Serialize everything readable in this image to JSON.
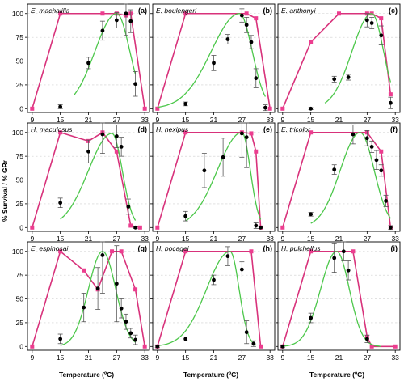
{
  "chart_data": {
    "type": "line",
    "ylabel": "% Survival / % GRr",
    "xlabel": "Temperature (ºC)",
    "x_ticks": [
      9,
      15,
      21,
      27,
      33
    ],
    "y_ticks": [
      0,
      25,
      50,
      75,
      100
    ],
    "xlim": [
      8,
      34
    ],
    "ylim": [
      -4,
      110
    ],
    "grid": "horizontal dashed",
    "colors": {
      "survival": "#e8408f",
      "fit": "#4cc74a",
      "growth": "#000000"
    },
    "panels": [
      {
        "letter": "(a)",
        "species": "E. machalilla",
        "survival": {
          "x": [
            9,
            15,
            24,
            27,
            29,
            30,
            33
          ],
          "y": [
            0,
            100,
            100,
            100,
            98,
            100,
            0
          ]
        },
        "growth": {
          "x": [
            15,
            21,
            24,
            27,
            29,
            30,
            31
          ],
          "y": [
            2,
            48,
            82,
            93,
            100,
            92,
            26
          ],
          "err": [
            2,
            6,
            10,
            8,
            23,
            12,
            13
          ]
        },
        "fit": {
          "center": 27.0,
          "height": 100,
          "left_width": 4.6,
          "right_width": 2.8,
          "range": [
            18,
            31
          ]
        }
      },
      {
        "letter": "(b)",
        "species": "E. boulengeri",
        "survival": {
          "x": [
            9,
            15,
            28,
            30,
            33
          ],
          "y": [
            0,
            100,
            100,
            95,
            0
          ]
        },
        "growth": {
          "x": [
            15,
            21,
            24,
            27,
            28,
            29,
            30,
            32
          ],
          "y": [
            5,
            48,
            73,
            98,
            88,
            70,
            32,
            1
          ],
          "err": [
            2,
            8,
            5,
            7,
            8,
            7,
            10,
            3
          ]
        },
        "fit": {
          "center": 26.5,
          "height": 100,
          "left_width": 6.0,
          "right_width": 2.7,
          "range": [
            9,
            32
          ]
        }
      },
      {
        "letter": "(c)",
        "species": "E. anthonyi",
        "survival": {
          "x": [
            9,
            15,
            21,
            27,
            28,
            30,
            32
          ],
          "y": [
            0,
            70,
            100,
            100,
            100,
            95,
            15
          ]
        },
        "growth": {
          "x": [
            15,
            20,
            23,
            27,
            28,
            30,
            32
          ],
          "y": [
            0,
            31,
            33,
            93,
            90,
            77,
            6
          ],
          "err": [
            1,
            3,
            3,
            7,
            6,
            10,
            6
          ]
        },
        "fit": {
          "center": 28.0,
          "height": 100,
          "left_width": 4.2,
          "right_width": 2.5,
          "range": [
            18,
            32
          ]
        }
      },
      {
        "letter": "(d)",
        "species": "H. maculosus",
        "survival": {
          "x": [
            9,
            15,
            21,
            24,
            27,
            30,
            32
          ],
          "y": [
            0,
            100,
            91,
            100,
            80,
            2,
            0
          ]
        },
        "growth": {
          "x": [
            15,
            21,
            24,
            27,
            28,
            29.5,
            31
          ],
          "y": [
            26,
            80,
            98,
            96,
            85,
            22,
            0
          ],
          "err": [
            5,
            12,
            20,
            12,
            10,
            8,
            1
          ]
        },
        "fit": {
          "center": 26.0,
          "height": 99,
          "left_width": 5.0,
          "right_width": 2.2,
          "range": [
            15,
            31
          ]
        }
      },
      {
        "letter": "(e)",
        "species": "H. nexipus",
        "survival": {
          "x": [
            9,
            15,
            27,
            29,
            30,
            31
          ],
          "y": [
            0,
            100,
            100,
            99,
            80,
            0
          ]
        },
        "growth": {
          "x": [
            15,
            19,
            23,
            27,
            28,
            30,
            31
          ],
          "y": [
            12,
            60,
            74,
            99,
            95,
            2,
            0
          ],
          "err": [
            5,
            18,
            20,
            25,
            32,
            3,
            1
          ]
        },
        "fit": {
          "center": 27.0,
          "height": 100,
          "left_width": 5.2,
          "right_width": 1.8,
          "range": [
            15,
            31
          ]
        }
      },
      {
        "letter": "(f)",
        "species": "E. tricolor",
        "survival": {
          "x": [
            9,
            15,
            27,
            30,
            32
          ],
          "y": [
            0,
            100,
            100,
            80,
            0
          ]
        },
        "growth": {
          "x": [
            15,
            20,
            24,
            27,
            28,
            29,
            30,
            31,
            32
          ],
          "y": [
            14,
            61,
            98,
            94,
            85,
            71,
            60,
            28,
            0
          ],
          "err": [
            2,
            5,
            10,
            8,
            6,
            10,
            6,
            6,
            2
          ]
        },
        "fit": {
          "center": 25.5,
          "height": 100,
          "left_width": 4.2,
          "right_width": 3.0,
          "range": [
            15,
            32
          ]
        }
      },
      {
        "letter": "(g)",
        "species": "E. espinosai",
        "survival": {
          "x": [
            9,
            15,
            20,
            23,
            26,
            28,
            31,
            33
          ],
          "y": [
            0,
            100,
            80,
            60,
            100,
            100,
            60,
            0
          ]
        },
        "growth": {
          "x": [
            15,
            20,
            23,
            24,
            27,
            28,
            29,
            30,
            31
          ],
          "y": [
            8,
            41,
            61,
            96,
            66,
            40,
            26,
            14,
            7
          ],
          "err": [
            5,
            15,
            22,
            40,
            40,
            10,
            8,
            5,
            5
          ]
        },
        "fit": {
          "center": 24.0,
          "height": 100,
          "left_width": 3.0,
          "right_width": 2.8,
          "range": [
            15,
            31
          ]
        }
      },
      {
        "letter": "(h)",
        "species": "H. bocagei",
        "survival": {
          "x": [
            9,
            15,
            29,
            31
          ],
          "y": [
            0,
            100,
            100,
            0
          ]
        },
        "growth": {
          "x": [
            9,
            15,
            21,
            24,
            27,
            28,
            29.5
          ],
          "y": [
            0,
            8,
            70,
            95,
            81,
            15,
            3
          ],
          "err": [
            1,
            2,
            5,
            10,
            8,
            12,
            3
          ]
        },
        "fit": {
          "center": 24.5,
          "height": 100,
          "left_width": 5.0,
          "right_width": 1.9,
          "range": [
            9,
            30
          ]
        }
      },
      {
        "letter": "(i)",
        "species": "H. pulchellus",
        "survival": {
          "x": [
            9,
            15,
            24,
            27,
            28,
            33
          ],
          "y": [
            0,
            100,
            100,
            10,
            0,
            0
          ]
        },
        "growth": {
          "x": [
            9,
            15,
            20,
            22,
            23,
            27
          ],
          "y": [
            0,
            30,
            93,
            100,
            80,
            8
          ],
          "err": [
            1,
            5,
            15,
            10,
            10,
            4
          ]
        },
        "fit": {
          "center": 20.5,
          "height": 100,
          "left_width": 3.4,
          "right_width": 2.7,
          "range": [
            9,
            30
          ]
        }
      }
    ]
  }
}
